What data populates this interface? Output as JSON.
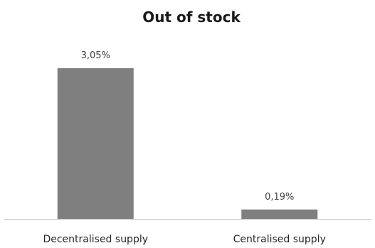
{
  "chart_data": {
    "type": "bar",
    "title": "Out of stock",
    "categories": [
      "Decentralised supply",
      "Centralised supply"
    ],
    "values": [
      3.05,
      0.19
    ],
    "value_labels": [
      "3,05%",
      "0,19%"
    ],
    "unit": "%",
    "ylim": [
      0,
      3.05
    ],
    "grid": false,
    "legend": "none",
    "xlabel": "",
    "ylabel": "",
    "colors": {
      "bar": "#7f7f7f",
      "axis": "#bfbfbf"
    }
  }
}
